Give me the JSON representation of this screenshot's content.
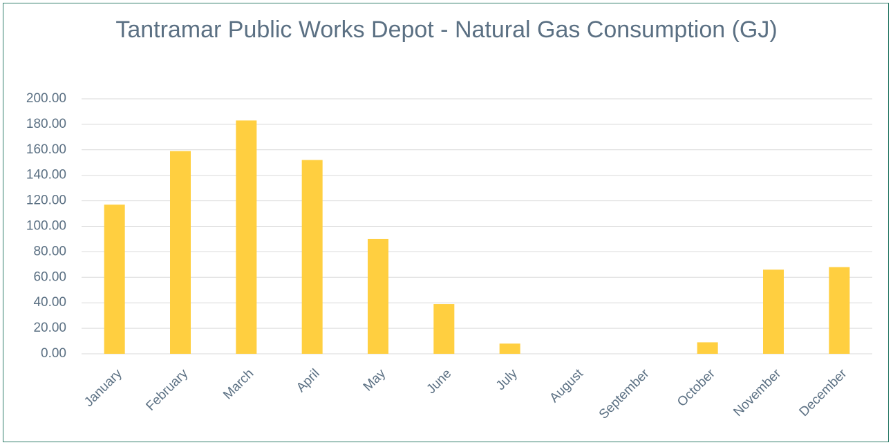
{
  "chart_data": {
    "type": "bar",
    "title": "Tantramar Public Works Depot - Natural Gas Consumption (GJ)",
    "categories": [
      "January",
      "February",
      "March",
      "April",
      "May",
      "June",
      "July",
      "August",
      "September",
      "October",
      "November",
      "December"
    ],
    "values": [
      117,
      159,
      183,
      152,
      90,
      39,
      8,
      0,
      0,
      9,
      66,
      68
    ],
    "color": "#ffcf40",
    "ylim": [
      0,
      200
    ],
    "yticks": [
      {
        "value": 0,
        "label": "0.00"
      },
      {
        "value": 20,
        "label": "20.00"
      },
      {
        "value": 40,
        "label": "40.00"
      },
      {
        "value": 60,
        "label": "60.00"
      },
      {
        "value": 80,
        "label": "80.00"
      },
      {
        "value": 100,
        "label": "100.00"
      },
      {
        "value": 120,
        "label": "120.00"
      },
      {
        "value": 140,
        "label": "140.00"
      },
      {
        "value": 160,
        "label": "160.00"
      },
      {
        "value": 180,
        "label": "180.00"
      },
      {
        "value": 200,
        "label": "200.00"
      }
    ],
    "grid": true
  }
}
